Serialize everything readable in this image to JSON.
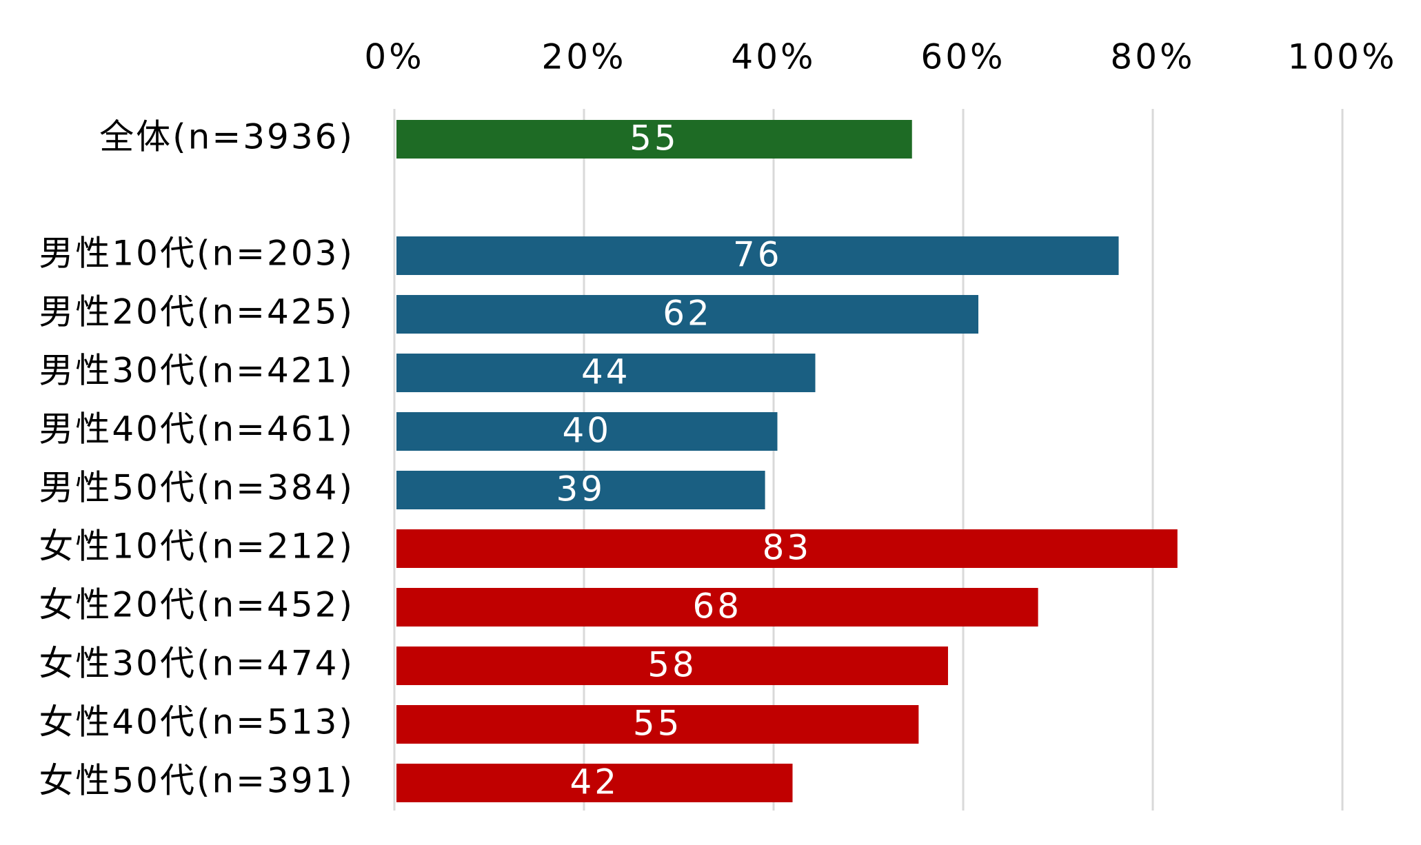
{
  "chart_data": {
    "type": "bar",
    "orientation": "horizontal",
    "title": "",
    "xlabel": "",
    "ylabel": "",
    "xlim": [
      0,
      100
    ],
    "x_ticks": [
      "0%",
      "20%",
      "40%",
      "60%",
      "80%",
      "100%"
    ],
    "x_axis_position": "top",
    "grid": true,
    "legend": "none",
    "colors": {
      "overall": "#1e6b25",
      "male": "#1a5f82",
      "female": "#c00000",
      "gridline": "#d9d9d9",
      "data_label": "#ffffff"
    },
    "categories": [
      "全体(n=3936)",
      "男性10代(n=203)",
      "男性20代(n=425)",
      "男性30代(n=421)",
      "男性40代(n=461)",
      "男性50代(n=384)",
      "女性10代(n=212)",
      "女性20代(n=452)",
      "女性30代(n=474)",
      "女性40代(n=513)",
      "女性50代(n=391)"
    ],
    "groups": [
      "overall",
      "male",
      "male",
      "male",
      "male",
      "male",
      "female",
      "female",
      "female",
      "female",
      "female"
    ],
    "values": [
      54.6,
      76.4,
      61.6,
      44.4,
      40.4,
      39.1,
      82.6,
      67.9,
      58.4,
      55.3,
      42.0
    ],
    "data_labels": [
      "55",
      "76",
      "62",
      "44",
      "40",
      "39",
      "83",
      "68",
      "58",
      "55",
      "42"
    ]
  }
}
